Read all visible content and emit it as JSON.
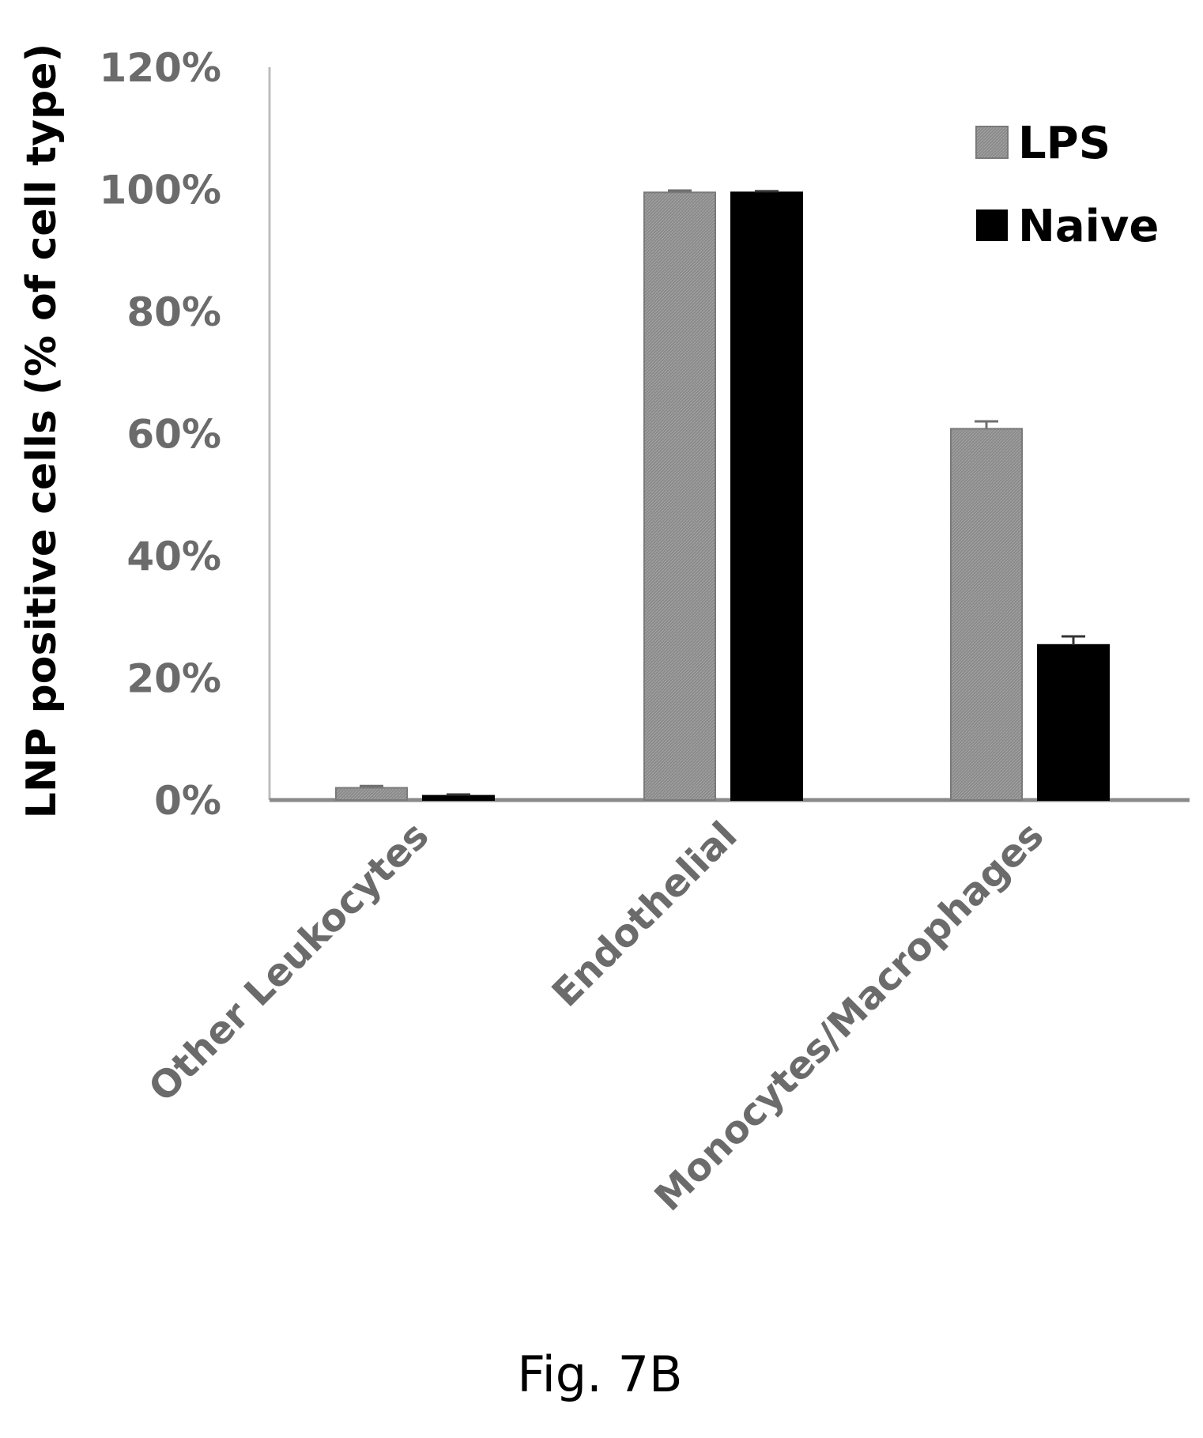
{
  "chart_data": {
    "type": "bar",
    "ylabel": "LNP positive cells (% of cell type)",
    "xlabel": "",
    "ylim": [
      0,
      120
    ],
    "y_ticks": [
      "0%",
      "20%",
      "40%",
      "60%",
      "80%",
      "100%",
      "120%"
    ],
    "y_tick_values": [
      0,
      20,
      40,
      60,
      80,
      100,
      120
    ],
    "categories": [
      "Other Leukocytes",
      "Endothelial",
      "Monocytes/Macrophages"
    ],
    "series": [
      {
        "name": "LPS",
        "color": "#8c8c8c",
        "values": [
          2,
          99.5,
          60.8
        ],
        "errors": [
          0.3,
          0.3,
          1.2
        ]
      },
      {
        "name": "Naive",
        "color": "#000000",
        "values": [
          0.7,
          99.5,
          25.4
        ],
        "errors": [
          0.2,
          0.2,
          1.4
        ]
      }
    ],
    "legend_position": "top-right",
    "grid": false
  },
  "caption": "Fig. 7B"
}
